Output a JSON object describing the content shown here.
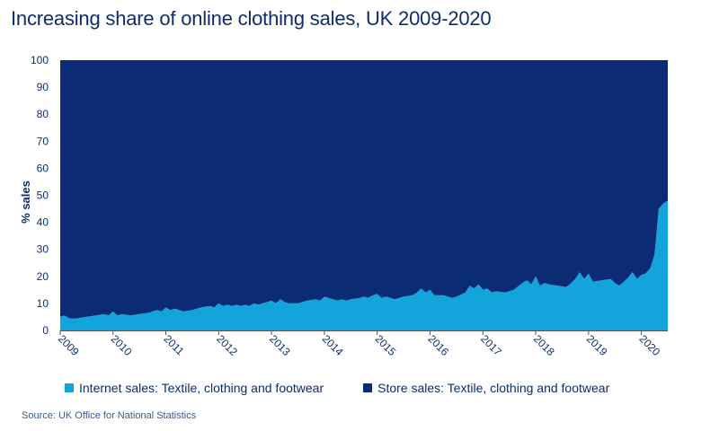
{
  "title": "Increasing share of online clothing sales, UK 2009-2020",
  "source": "Source: UK Office for National Statistics",
  "colors": {
    "internet": "#13a4dc",
    "store": "#0b2c74",
    "text": "#0d2d6c"
  },
  "chart_data": {
    "type": "area",
    "stacked": true,
    "ylabel": "% sales",
    "xlabel": "",
    "ylim": [
      0,
      100
    ],
    "yticks": [
      0,
      10,
      20,
      30,
      40,
      50,
      60,
      70,
      80,
      90,
      100
    ],
    "xlim": [
      2009.0,
      2020.5
    ],
    "year_ticks": [
      "2009",
      "2010",
      "2011",
      "2012",
      "2013",
      "2014",
      "2015",
      "2016",
      "2017",
      "2018",
      "2019",
      "2020"
    ],
    "grid": false,
    "legend_position": "bottom",
    "series": [
      {
        "name": "Internet sales: Textile, clothing and footwear",
        "color": "#13a4dc",
        "x": [
          2009.0,
          2009.08,
          2009.17,
          2009.33,
          2009.5,
          2009.67,
          2009.83,
          2009.92,
          2010.0,
          2010.08,
          2010.17,
          2010.33,
          2010.5,
          2010.67,
          2010.83,
          2010.92,
          2011.0,
          2011.08,
          2011.17,
          2011.25,
          2011.33,
          2011.5,
          2011.67,
          2011.83,
          2011.92,
          2012.0,
          2012.08,
          2012.17,
          2012.25,
          2012.33,
          2012.42,
          2012.5,
          2012.58,
          2012.67,
          2012.75,
          2012.83,
          2012.92,
          2013.0,
          2013.08,
          2013.17,
          2013.25,
          2013.33,
          2013.5,
          2013.67,
          2013.83,
          2013.92,
          2014.0,
          2014.08,
          2014.17,
          2014.25,
          2014.33,
          2014.42,
          2014.5,
          2014.67,
          2014.75,
          2014.83,
          2014.92,
          2015.0,
          2015.08,
          2015.17,
          2015.33,
          2015.42,
          2015.5,
          2015.67,
          2015.75,
          2015.83,
          2015.92,
          2016.0,
          2016.08,
          2016.25,
          2016.42,
          2016.5,
          2016.67,
          2016.75,
          2016.83,
          2016.92,
          2017.0,
          2017.08,
          2017.17,
          2017.25,
          2017.42,
          2017.58,
          2017.75,
          2017.83,
          2017.92,
          2018.0,
          2018.08,
          2018.17,
          2018.25,
          2018.42,
          2018.58,
          2018.67,
          2018.75,
          2018.83,
          2018.92,
          2019.0,
          2019.08,
          2019.25,
          2019.42,
          2019.5,
          2019.58,
          2019.67,
          2019.75,
          2019.83,
          2019.92,
          2020.0,
          2020.08,
          2020.17,
          2020.25,
          2020.33,
          2020.42,
          2020.5
        ],
        "values": [
          5,
          5.5,
          4.5,
          4.5,
          5,
          5.5,
          6,
          5.5,
          7,
          5.5,
          6,
          5.5,
          6,
          6.5,
          7.5,
          7,
          8.5,
          7.5,
          8,
          7.5,
          7,
          7.5,
          8.5,
          9,
          8.5,
          10,
          9,
          9.5,
          9,
          9.5,
          9,
          9.5,
          9,
          10,
          9.5,
          10,
          10.5,
          11,
          10,
          11.5,
          10.5,
          10,
          10,
          11,
          11.5,
          11,
          12.5,
          12,
          11.5,
          11,
          11.5,
          11,
          11.5,
          12,
          12.5,
          12,
          13,
          13.5,
          12,
          12.5,
          11.5,
          12,
          12.5,
          13,
          14,
          15.5,
          14,
          15,
          13,
          13,
          12,
          12.5,
          14,
          16.5,
          15.5,
          17,
          15,
          15.5,
          14,
          14.5,
          14,
          15,
          17.5,
          18.5,
          17,
          20,
          16.5,
          17.5,
          17,
          16.5,
          16,
          17.5,
          19,
          21.5,
          19,
          21,
          18,
          18.5,
          19,
          17.5,
          16.5,
          18,
          19.5,
          21.5,
          19,
          20.5,
          21,
          23,
          28,
          45,
          47,
          48
        ]
      },
      {
        "name": "Store sales: Textile, clothing and footwear",
        "color": "#0b2c74",
        "fills_to": 100
      }
    ]
  }
}
